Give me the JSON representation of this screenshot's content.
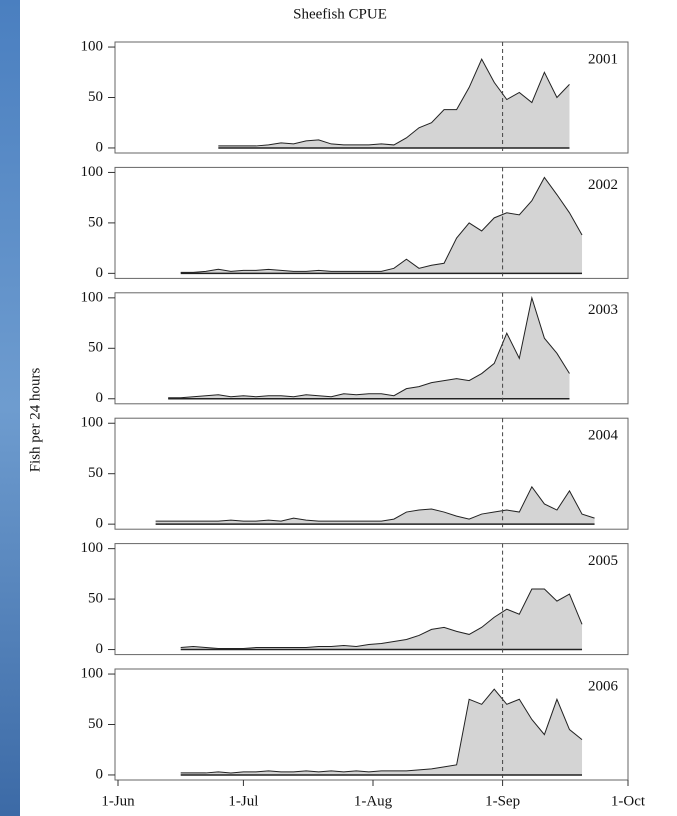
{
  "chart_data": {
    "type": "area",
    "title": "Sheefish CPUE",
    "y_label": "Fish per 24 hours",
    "x": [
      0,
      3,
      6,
      9,
      12,
      15,
      18,
      21,
      24,
      27,
      30,
      33,
      36,
      39,
      42,
      45,
      48,
      51,
      54,
      57,
      60,
      63,
      66,
      69,
      72,
      75,
      78,
      81,
      84,
      87,
      90,
      93,
      96,
      99,
      102,
      105,
      108,
      111,
      114
    ],
    "xlim": [
      0,
      122
    ],
    "xticks": [
      {
        "value": 0,
        "label": "1-Jun"
      },
      {
        "value": 30,
        "label": "1-Jul"
      },
      {
        "value": 61,
        "label": "1-Aug"
      },
      {
        "value": 92,
        "label": "1-Sep"
      },
      {
        "value": 122,
        "label": "1-Oct"
      }
    ],
    "ylim": [
      -5,
      105
    ],
    "yticks": [
      0,
      50,
      100
    ],
    "vline": 92,
    "series": [
      {
        "name": "2001",
        "color": "#d4d4d4",
        "values": [
          null,
          null,
          null,
          null,
          null,
          null,
          null,
          null,
          2,
          2,
          2,
          2,
          3,
          5,
          4,
          7,
          8,
          4,
          3,
          3,
          3,
          4,
          3,
          10,
          20,
          25,
          38,
          38,
          60,
          88,
          65,
          48,
          55,
          45,
          75,
          50,
          63,
          null,
          null
        ]
      },
      {
        "name": "2002",
        "color": "#d4d4d4",
        "values": [
          null,
          null,
          null,
          null,
          null,
          1,
          1,
          2,
          4,
          2,
          3,
          3,
          4,
          3,
          2,
          2,
          3,
          2,
          2,
          2,
          2,
          2,
          5,
          14,
          5,
          8,
          10,
          35,
          50,
          42,
          55,
          60,
          58,
          72,
          95,
          78,
          60,
          38,
          null
        ]
      },
      {
        "name": "2003",
        "color": "#d4d4d4",
        "values": [
          null,
          null,
          null,
          null,
          1,
          1,
          2,
          3,
          4,
          2,
          3,
          2,
          3,
          3,
          2,
          4,
          3,
          2,
          5,
          4,
          5,
          5,
          3,
          10,
          12,
          16,
          18,
          20,
          18,
          25,
          35,
          65,
          40,
          100,
          60,
          45,
          25,
          null,
          null
        ]
      },
      {
        "name": "2004",
        "color": "#d4d4d4",
        "values": [
          null,
          null,
          null,
          3,
          3,
          3,
          3,
          3,
          3,
          4,
          3,
          3,
          4,
          3,
          6,
          4,
          3,
          3,
          3,
          3,
          3,
          3,
          5,
          12,
          14,
          15,
          12,
          8,
          5,
          10,
          12,
          14,
          12,
          37,
          20,
          14,
          33,
          10,
          6
        ]
      },
      {
        "name": "2005",
        "color": "#d4d4d4",
        "values": [
          null,
          null,
          null,
          null,
          null,
          2,
          3,
          2,
          1,
          1,
          1,
          2,
          2,
          2,
          2,
          2,
          3,
          3,
          4,
          3,
          5,
          6,
          8,
          10,
          14,
          20,
          22,
          18,
          15,
          22,
          32,
          40,
          35,
          60,
          60,
          48,
          55,
          25,
          null
        ]
      },
      {
        "name": "2006",
        "color": "#d4d4d4",
        "values": [
          null,
          null,
          null,
          null,
          null,
          2,
          2,
          2,
          3,
          2,
          3,
          3,
          4,
          3,
          3,
          4,
          3,
          4,
          3,
          4,
          3,
          4,
          4,
          4,
          5,
          6,
          8,
          10,
          75,
          70,
          85,
          70,
          75,
          55,
          40,
          75,
          45,
          35,
          null
        ]
      }
    ]
  }
}
